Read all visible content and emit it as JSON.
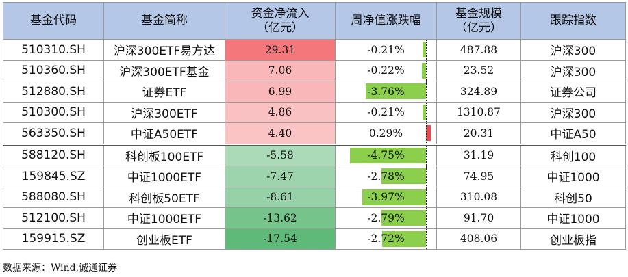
{
  "table": {
    "headers": {
      "code": "基金代码",
      "name": "基金简称",
      "flow_l1": "资金净流入",
      "flow_l2": "（亿元）",
      "change": "周净值涨跌幅",
      "size_l1": "基金规模",
      "size_l2": "（亿元）",
      "index": "跟踪指数"
    },
    "rows": [
      {
        "code": "510310.SH",
        "name": "沪深300ETF易方达",
        "flow": "29.31",
        "flow_value": 29.31,
        "change": "-0.21%",
        "change_value": -0.21,
        "size": "487.88",
        "index": "沪深300"
      },
      {
        "code": "510360.SH",
        "name": "沪深300ETF基金",
        "flow": "7.06",
        "flow_value": 7.06,
        "change": "-0.22%",
        "change_value": -0.22,
        "size": "23.52",
        "index": "沪深300"
      },
      {
        "code": "512880.SH",
        "name": "证券ETF",
        "flow": "6.99",
        "flow_value": 6.99,
        "change": "-3.76%",
        "change_value": -3.76,
        "size": "324.89",
        "index": "证券公司"
      },
      {
        "code": "510300.SH",
        "name": "沪深300ETF",
        "flow": "4.86",
        "flow_value": 4.86,
        "change": "-0.21%",
        "change_value": -0.21,
        "size": "1310.87",
        "index": "沪深300"
      },
      {
        "code": "563350.SH",
        "name": "中证A50ETF",
        "flow": "4.40",
        "flow_value": 4.4,
        "change": "0.29%",
        "change_value": 0.29,
        "size": "20.31",
        "index": "中证A50"
      },
      {
        "code": "588120.SH",
        "name": "科创板100ETF",
        "flow": "-5.58",
        "flow_value": -5.58,
        "change": "-4.75%",
        "change_value": -4.75,
        "size": "31.19",
        "index": "科创100"
      },
      {
        "code": "159845.SZ",
        "name": "中证1000ETF",
        "flow": "-7.47",
        "flow_value": -7.47,
        "change": "-2.78%",
        "change_value": -2.78,
        "size": "74.95",
        "index": "中证1000"
      },
      {
        "code": "588080.SH",
        "name": "科创板50ETF",
        "flow": "-8.61",
        "flow_value": -8.61,
        "change": "-3.97%",
        "change_value": -3.97,
        "size": "310.08",
        "index": "科创50"
      },
      {
        "code": "512100.SH",
        "name": "中证1000ETF",
        "flow": "-13.62",
        "flow_value": -13.62,
        "change": "-2.79%",
        "change_value": -2.79,
        "size": "91.70",
        "index": "中证1000"
      },
      {
        "code": "159915.SZ",
        "name": "创业板ETF",
        "flow": "-17.54",
        "flow_value": -17.54,
        "change": "-2.72%",
        "change_value": -2.72,
        "size": "408.06",
        "index": "创业板指"
      }
    ]
  },
  "colors": {
    "header_bg": "#b4c7e7",
    "inflow_max": "#f4787b",
    "inflow_min": "#fde6e7",
    "outflow_min": "#d8eedf",
    "outflow_max": "#5fb978",
    "bar_negative": "#8ccf4d",
    "bar_positive": "#e84a4f"
  },
  "source": "数据来源：Wind,诚通证券"
}
